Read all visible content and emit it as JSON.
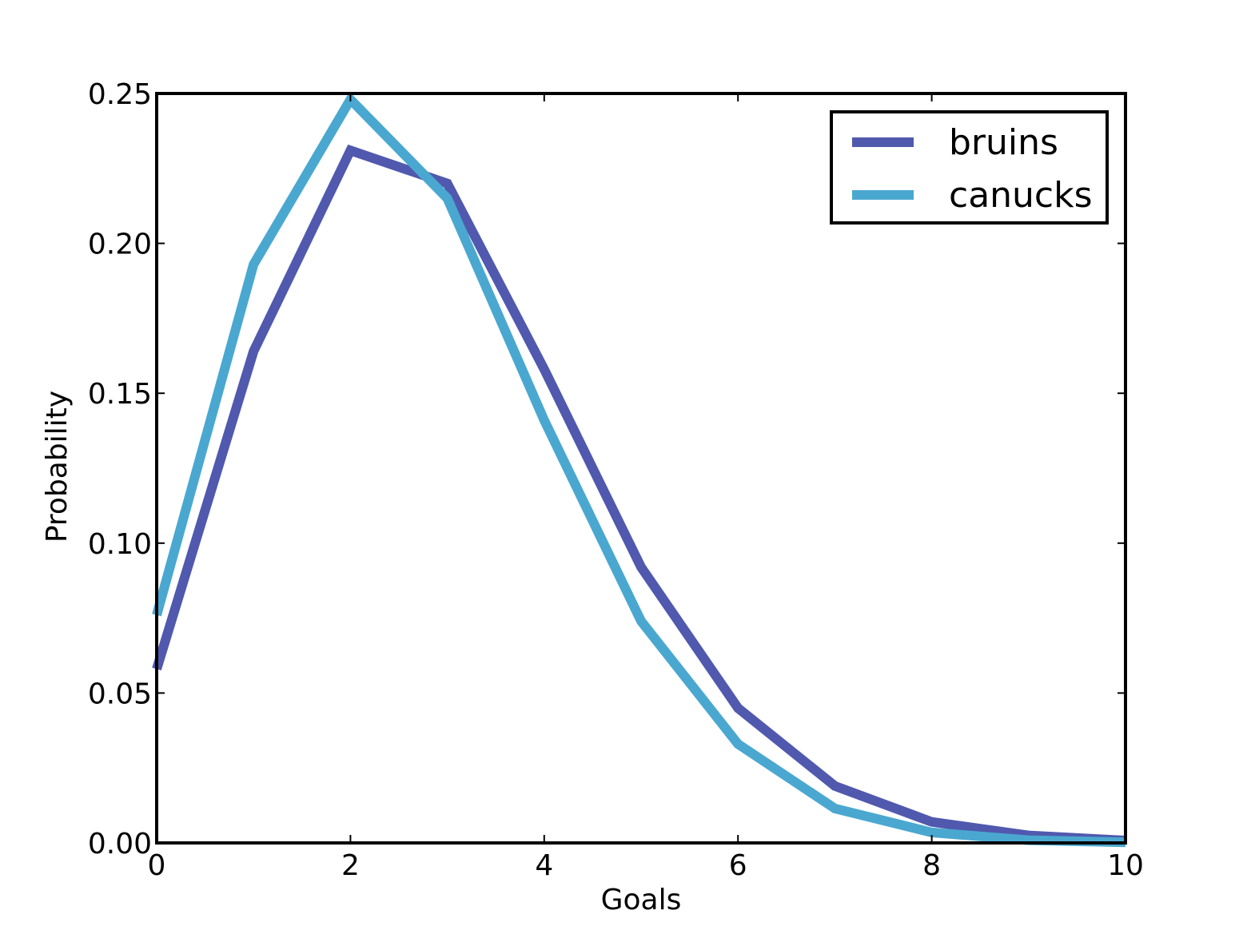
{
  "chart_data": {
    "type": "line",
    "title": "",
    "xlabel": "Goals",
    "ylabel": "Probability",
    "xlim": [
      0,
      10
    ],
    "ylim": [
      0,
      0.25
    ],
    "x_ticks": [
      0,
      2,
      4,
      6,
      8,
      10
    ],
    "x_tick_labels": [
      "0",
      "2",
      "4",
      "6",
      "8",
      "10"
    ],
    "y_ticks": [
      0,
      0.05,
      0.1,
      0.15,
      0.2,
      0.25
    ],
    "y_tick_labels": [
      "0.00",
      "0.05",
      "0.10",
      "0.15",
      "0.20",
      "0.25"
    ],
    "grid": false,
    "legend_position": "top-right",
    "x": [
      0,
      1,
      2,
      3,
      4,
      5,
      6,
      7,
      8,
      9,
      10
    ],
    "series": [
      {
        "name": "bruins",
        "color": "#5059ae",
        "values": [
          0.058,
          0.164,
          0.231,
          0.22,
          0.158,
          0.092,
          0.045,
          0.019,
          0.007,
          0.0025,
          0.0008
        ]
      },
      {
        "name": "canucks",
        "color": "#4aa8d0",
        "values": [
          0.076,
          0.193,
          0.248,
          0.215,
          0.141,
          0.074,
          0.033,
          0.0115,
          0.0035,
          0.0009,
          0.0002
        ]
      }
    ]
  }
}
